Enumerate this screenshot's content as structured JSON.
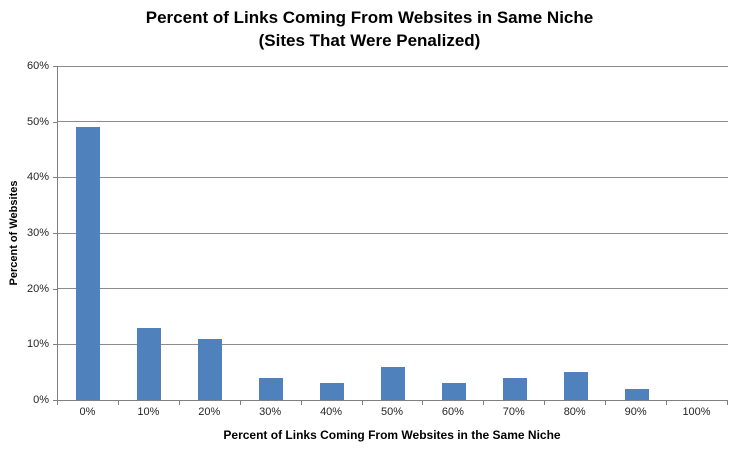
{
  "title": {
    "line1": "Percent of Links Coming From Websites in Same Niche",
    "line2": "(Sites That Were Penalized)"
  },
  "chart_data": {
    "type": "bar",
    "title": "Percent of Links Coming From Websites in Same Niche (Sites That Were Penalized)",
    "categories": [
      "0%",
      "10%",
      "20%",
      "30%",
      "40%",
      "50%",
      "60%",
      "70%",
      "80%",
      "90%",
      "100%"
    ],
    "values": [
      49,
      13,
      11,
      4,
      3,
      6,
      3,
      4,
      5,
      2,
      0
    ],
    "xlabel": "Percent of Links Coming From Websites in the Same Niche",
    "ylabel": "Percent of Websites",
    "ylim": [
      0,
      60
    ],
    "ytick_labels": [
      "0%",
      "10%",
      "20%",
      "30%",
      "40%",
      "50%",
      "60%"
    ],
    "grid": true,
    "legend": "none",
    "bar_color": "#4F81BD",
    "gridline_color": "#8C8C8C",
    "axis_color": "#808080",
    "tick_text_color": "#262626"
  }
}
